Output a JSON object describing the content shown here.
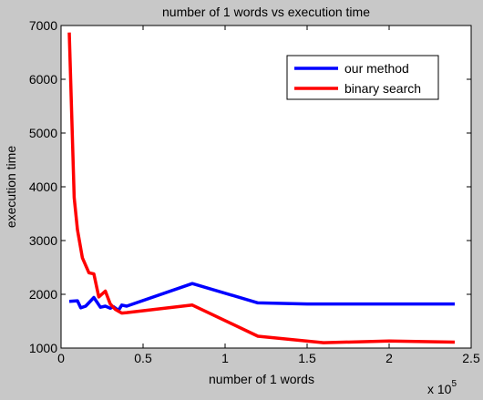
{
  "chart_data": {
    "type": "line",
    "title": "number of 1 words vs execution time",
    "xlabel": "number of 1 words",
    "ylabel": "execution time",
    "x_multiplier_label": "x 10",
    "x_multiplier_exponent": "5",
    "xlim": [
      0,
      2.5
    ],
    "ylim": [
      1000,
      7000
    ],
    "xticks": [
      0,
      0.5,
      1,
      1.5,
      2,
      2.5
    ],
    "xtick_labels": [
      "0",
      "0.5",
      "1",
      "1.5",
      "2",
      "2.5"
    ],
    "yticks": [
      1000,
      2000,
      3000,
      4000,
      5000,
      6000,
      7000
    ],
    "ytick_labels": [
      "1000",
      "2000",
      "3000",
      "4000",
      "5000",
      "6000",
      "7000"
    ],
    "grid": false,
    "legend_position": "top-right",
    "series": [
      {
        "name": "our method",
        "color": "#0000ff",
        "x": [
          0.05,
          0.1,
          0.12,
          0.15,
          0.2,
          0.24,
          0.27,
          0.3,
          0.32,
          0.35,
          0.37,
          0.4,
          0.8,
          1.2,
          1.5,
          2.0,
          2.4
        ],
        "y": [
          1870,
          1880,
          1750,
          1780,
          1940,
          1760,
          1780,
          1740,
          1770,
          1700,
          1800,
          1780,
          2200,
          1840,
          1820,
          1820,
          1820
        ]
      },
      {
        "name": "binary search",
        "color": "#ff0000",
        "x": [
          0.05,
          0.08,
          0.1,
          0.13,
          0.17,
          0.2,
          0.23,
          0.27,
          0.3,
          0.33,
          0.37,
          0.4,
          0.8,
          1.2,
          1.6,
          2.0,
          2.4
        ],
        "y": [
          6870,
          3800,
          3200,
          2680,
          2400,
          2380,
          1950,
          2060,
          1820,
          1720,
          1650,
          1660,
          1800,
          1220,
          1100,
          1130,
          1110
        ]
      }
    ]
  }
}
